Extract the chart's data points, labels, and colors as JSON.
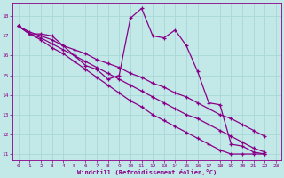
{
  "xlabel": "Windchill (Refroidissement éolien,°C)",
  "xlim": [
    -0.5,
    23.5
  ],
  "ylim": [
    10.7,
    18.7
  ],
  "xticks": [
    0,
    1,
    2,
    3,
    4,
    5,
    6,
    7,
    8,
    9,
    10,
    11,
    12,
    13,
    14,
    15,
    16,
    17,
    18,
    19,
    20,
    21,
    22,
    23
  ],
  "yticks": [
    11,
    12,
    13,
    14,
    15,
    16,
    17,
    18
  ],
  "bg_color": "#c2e8e8",
  "line_color": "#880088",
  "grid_color": "#a8d8d8",
  "lines": [
    [
      17.5,
      17.1,
      17.1,
      17.0,
      16.5,
      16.0,
      15.5,
      15.3,
      14.8,
      15.0,
      17.9,
      18.4,
      17.0,
      16.9,
      17.3,
      16.5,
      15.2,
      13.6,
      13.5,
      11.5,
      11.4,
      11.1,
      11.0
    ],
    [
      17.5,
      17.1,
      16.8,
      16.4,
      16.1,
      15.7,
      15.3,
      14.9,
      14.5,
      14.1,
      13.7,
      13.4,
      13.0,
      12.7,
      12.4,
      12.1,
      11.8,
      11.5,
      11.2,
      11.0,
      11.0,
      11.0,
      11.0
    ],
    [
      17.5,
      17.1,
      16.9,
      16.6,
      16.3,
      16.0,
      15.7,
      15.4,
      15.1,
      14.8,
      14.5,
      14.2,
      13.9,
      13.6,
      13.3,
      13.0,
      12.8,
      12.5,
      12.2,
      11.9,
      11.6,
      11.3,
      11.1
    ],
    [
      17.5,
      17.2,
      17.0,
      16.8,
      16.5,
      16.3,
      16.1,
      15.8,
      15.6,
      15.4,
      15.1,
      14.9,
      14.6,
      14.4,
      14.1,
      13.9,
      13.6,
      13.3,
      13.0,
      12.8,
      12.5,
      12.2,
      11.9
    ]
  ]
}
